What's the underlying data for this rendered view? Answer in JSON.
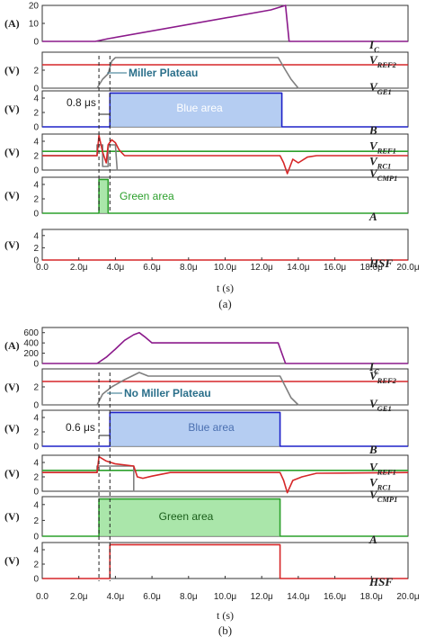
{
  "chart_data": [
    {
      "id": "a",
      "type": "line",
      "caption": "(a)",
      "xlabel": "t (s)",
      "xlim": [
        0,
        20
      ],
      "xticks": [
        "0.0",
        "2.0μ",
        "4.0μ",
        "6.0μ",
        "8.0μ",
        "10.0μ",
        "12.0μ",
        "14.0μ",
        "16.0μ",
        "18.0μ",
        "20.0μ"
      ],
      "panels": [
        {
          "ylabel": "(A)",
          "ylim": [
            0,
            20
          ],
          "yticks": [
            "0",
            "10",
            "20"
          ],
          "labels": [
            {
              "text": "I",
              "sub": "C",
              "y": 0
            }
          ],
          "series": [
            {
              "name": "I_C",
              "color": "#8b1a8b",
              "x": [
                0,
                2.9,
                3.6,
                12.5,
                13.3,
                13.5,
                20
              ],
              "y": [
                0,
                0,
                1.5,
                17.5,
                20,
                0,
                0
              ]
            }
          ]
        },
        {
          "ylabel": "(V)",
          "ylim": [
            0,
            4
          ],
          "yticks": [
            "0",
            "2"
          ],
          "labels": [
            {
              "text": "V",
              "sub": "REF2",
              "y": 3.5
            },
            {
              "text": "V",
              "sub": "GE1",
              "y": 0.5
            }
          ],
          "series": [
            {
              "name": "V_REF2",
              "color": "#d62728",
              "x": [
                0,
                20
              ],
              "y": [
                2.6,
                2.6
              ]
            },
            {
              "name": "V_GE1",
              "color": "#7f7f7f",
              "x": [
                0,
                3.0,
                3.3,
                3.6,
                3.8,
                4.0,
                12.9,
                13.3,
                13.6,
                14.0,
                20
              ],
              "y": [
                0,
                0,
                1.0,
                1.6,
                3.0,
                3.4,
                3.4,
                2.0,
                1.0,
                0,
                0
              ]
            }
          ]
        },
        {
          "ylabel": "(V)",
          "ylim": [
            0,
            5
          ],
          "yticks": [
            "0",
            "2",
            "4"
          ],
          "labels": [
            {
              "text": "B",
              "sub": "",
              "y": 0
            }
          ],
          "fill": {
            "name": "Blue area",
            "x0": 3.7,
            "x1": 13.1,
            "color": "#a8c4f0"
          },
          "series": [
            {
              "name": "B",
              "color": "#1f22c8",
              "x": [
                0,
                3.7,
                3.7,
                13.1,
                13.1,
                20
              ],
              "y": [
                0,
                0,
                4.7,
                4.7,
                0,
                0
              ]
            }
          ]
        },
        {
          "ylabel": "(V)",
          "ylim": [
            0,
            5
          ],
          "yticks": [
            "0",
            "2",
            "4"
          ],
          "labels": [
            {
              "text": "V",
              "sub": "REF1",
              "y": 3.8
            },
            {
              "text": "V",
              "sub": "RC1",
              "y": 1.7
            },
            {
              "text": "V",
              "sub": "CMP1",
              "y": 0
            }
          ],
          "series": [
            {
              "name": "V_REF1",
              "color": "#2ca02c",
              "x": [
                0,
                20
              ],
              "y": [
                2.6,
                2.6
              ]
            },
            {
              "name": "V_CMP1",
              "color": "#7f7f7f",
              "x": [
                0,
                3.0,
                3.0,
                3.3,
                3.3,
                3.6,
                3.6,
                4.0,
                4.1,
                20
              ],
              "y": [
                2.0,
                2.0,
                3.5,
                3.5,
                0.5,
                0.5,
                3.5,
                3.5,
                0,
                0
              ]
            },
            {
              "name": "V_RC1",
              "color": "#d62728",
              "x": [
                0,
                3.0,
                3.1,
                3.3,
                3.5,
                3.6,
                3.8,
                4.0,
                4.2,
                4.5,
                13.0,
                13.2,
                13.4,
                13.7,
                14.0,
                14.5,
                15.0,
                20
              ],
              "y": [
                2.0,
                2.0,
                4.8,
                2.5,
                1.0,
                3.5,
                4.2,
                3.8,
                2.8,
                2.0,
                2.0,
                1.0,
                -0.5,
                1.5,
                1.0,
                1.8,
                2.0,
                2.0
              ]
            }
          ]
        },
        {
          "ylabel": "(V)",
          "ylim": [
            0,
            5
          ],
          "yticks": [
            "0",
            "2",
            "4"
          ],
          "labels": [
            {
              "text": "A",
              "sub": "",
              "y": 0
            }
          ],
          "fill": {
            "name": "Green area",
            "x0": 3.1,
            "x1": 3.6,
            "color": "#9be29b"
          },
          "series": [
            {
              "name": "A",
              "color": "#2ca02c",
              "x": [
                0,
                3.1,
                3.1,
                3.6,
                3.6,
                20
              ],
              "y": [
                0,
                0,
                4.7,
                4.7,
                0,
                0
              ]
            }
          ]
        },
        {
          "ylabel": "(V)",
          "ylim": [
            0,
            5
          ],
          "yticks": [
            "0",
            "2",
            "4"
          ],
          "labels": [
            {
              "text": "HSF",
              "sub": "",
              "y": 0
            }
          ],
          "series": [
            {
              "name": "HSF",
              "color": "#d62728",
              "x": [
                0,
                20
              ],
              "y": [
                0,
                0
              ]
            }
          ]
        }
      ],
      "annotations": [
        {
          "text": "Miller Plateau",
          "color": "#2a6f8a",
          "panel": 1
        },
        {
          "text": "0.8 μs",
          "color": "#222222",
          "panel": 2
        },
        {
          "text": "Blue area",
          "color": "#ffffff",
          "panel": 2
        },
        {
          "text": "Green area",
          "color": "#2ca02c",
          "panel": 4
        }
      ]
    },
    {
      "id": "b",
      "type": "line",
      "caption": "(b)",
      "xlabel": "t (s)",
      "xlim": [
        0,
        20
      ],
      "xticks": [
        "0.0",
        "2.0μ",
        "4.0μ",
        "6.0μ",
        "8.0μ",
        "10.0μ",
        "12.0μ",
        "14.0μ",
        "16.0μ",
        "18.0μ",
        "20.0μ"
      ],
      "panels": [
        {
          "ylabel": "(A)",
          "ylim": [
            0,
            700
          ],
          "yticks": [
            "0",
            "200",
            "400",
            "600"
          ],
          "labels": [
            {
              "text": "I",
              "sub": "C",
              "y": 0
            }
          ],
          "series": [
            {
              "name": "I_C",
              "color": "#8b1a8b",
              "x": [
                0,
                3.0,
                3.5,
                4.0,
                4.5,
                5.0,
                5.3,
                5.6,
                6.0,
                12.9,
                13.1,
                13.3,
                20
              ],
              "y": [
                0,
                0,
                120,
                280,
                450,
                560,
                600,
                520,
                400,
                400,
                200,
                0,
                0
              ]
            }
          ]
        },
        {
          "ylabel": "(V)",
          "ylim": [
            0,
            4
          ],
          "yticks": [
            "0",
            "2"
          ],
          "labels": [
            {
              "text": "V",
              "sub": "REF2",
              "y": 3.6
            },
            {
              "text": "V",
              "sub": "GE1",
              "y": 0.5
            }
          ],
          "series": [
            {
              "name": "V_REF2",
              "color": "#d62728",
              "x": [
                0,
                20
              ],
              "y": [
                2.6,
                2.6
              ]
            },
            {
              "name": "V_GE1",
              "color": "#7f7f7f",
              "x": [
                0,
                3.0,
                3.3,
                3.8,
                4.5,
                5.0,
                5.3,
                5.8,
                13.0,
                13.3,
                13.6,
                14.0,
                20
              ],
              "y": [
                0,
                0,
                1.2,
                2.0,
                2.8,
                3.3,
                3.6,
                3.2,
                3.2,
                2.0,
                0.8,
                0,
                0
              ]
            }
          ]
        },
        {
          "ylabel": "(V)",
          "ylim": [
            0,
            5
          ],
          "yticks": [
            "0",
            "2",
            "4"
          ],
          "labels": [
            {
              "text": "B",
              "sub": "",
              "y": 0
            }
          ],
          "fill": {
            "name": "Blue area",
            "x0": 3.7,
            "x1": 13.0,
            "color": "#a8c4f0"
          },
          "series": [
            {
              "name": "B",
              "color": "#1f22c8",
              "x": [
                0,
                3.7,
                3.7,
                13.0,
                13.0,
                20
              ],
              "y": [
                0,
                0,
                4.7,
                4.7,
                0,
                0
              ]
            }
          ]
        },
        {
          "ylabel": "(V)",
          "ylim": [
            0,
            5
          ],
          "yticks": [
            "0",
            "2",
            "4"
          ],
          "labels": [
            {
              "text": "V",
              "sub": "REF1",
              "y": 3.8
            },
            {
              "text": "V",
              "sub": "RC1",
              "y": 1.7
            },
            {
              "text": "V",
              "sub": "CMP1",
              "y": 0
            }
          ],
          "series": [
            {
              "name": "V_REF1",
              "color": "#2ca02c",
              "x": [
                0,
                20
              ],
              "y": [
                2.9,
                2.9
              ]
            },
            {
              "name": "V_CMP1",
              "color": "#7f7f7f",
              "x": [
                0,
                3.0,
                3.0,
                5.0,
                5.0,
                20
              ],
              "y": [
                2.6,
                2.6,
                3.5,
                3.5,
                0,
                0
              ]
            },
            {
              "name": "V_RC1",
              "color": "#d62728",
              "x": [
                0,
                3.0,
                3.1,
                3.5,
                4.0,
                5.0,
                5.2,
                5.5,
                6.0,
                7.0,
                13.0,
                13.2,
                13.4,
                13.7,
                14.2,
                15.0,
                20
              ],
              "y": [
                2.6,
                2.6,
                4.8,
                4.2,
                3.8,
                3.5,
                2.0,
                1.8,
                2.1,
                2.6,
                2.6,
                1.5,
                -0.2,
                1.5,
                2.0,
                2.5,
                2.6
              ]
            }
          ]
        },
        {
          "ylabel": "(V)",
          "ylim": [
            0,
            5
          ],
          "yticks": [
            "0",
            "2",
            "4"
          ],
          "labels": [
            {
              "text": "A",
              "sub": "",
              "y": 0
            }
          ],
          "fill": {
            "name": "Green area",
            "x0": 3.1,
            "x1": 13.0,
            "color": "#9be29b"
          },
          "series": [
            {
              "name": "A",
              "color": "#2ca02c",
              "x": [
                0,
                3.1,
                3.1,
                13.0,
                13.0,
                20
              ],
              "y": [
                0,
                0,
                4.7,
                4.7,
                0,
                0
              ]
            }
          ]
        },
        {
          "ylabel": "(V)",
          "ylim": [
            0,
            5
          ],
          "yticks": [
            "0",
            "2",
            "4"
          ],
          "labels": [
            {
              "text": "HSF",
              "sub": "",
              "y": 0
            }
          ],
          "series": [
            {
              "name": "HSF",
              "color": "#d62728",
              "x": [
                0,
                3.7,
                3.7,
                13.0,
                13.0,
                20
              ],
              "y": [
                0,
                0,
                4.7,
                4.7,
                0,
                0
              ]
            }
          ]
        }
      ],
      "annotations": [
        {
          "text": "No Miller Plateau",
          "color": "#2a6f8a",
          "panel": 1
        },
        {
          "text": "0.6 μs",
          "color": "#222222",
          "panel": 2
        },
        {
          "text": "Blue area",
          "color": "#4a6fb0",
          "panel": 2
        },
        {
          "text": "Green area",
          "color": "#1a5e1a",
          "panel": 4
        }
      ]
    }
  ]
}
